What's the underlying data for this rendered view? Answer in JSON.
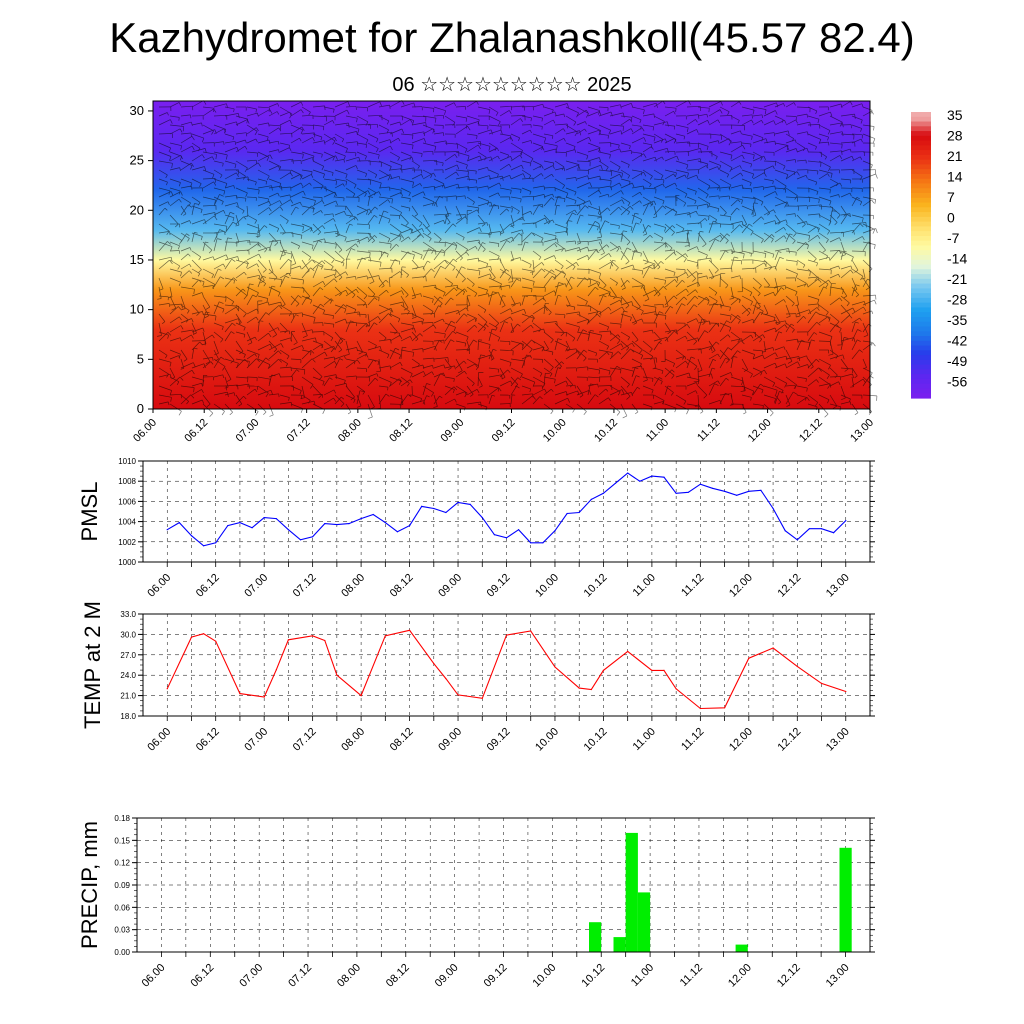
{
  "title": "Kazhydromet for Zhalanashkoll(45.57 82.4)",
  "subtitle": "06 ☆☆☆☆☆☆☆☆☆ 2025",
  "chart_data": [
    {
      "type": "heatmap",
      "name": "temperature-wind-cross-section",
      "x_ticks": [
        "06.00",
        "06.12",
        "07.00",
        "07.12",
        "08.00",
        "08.12",
        "09.00",
        "09.12",
        "10.00",
        "10.12",
        "11.00",
        "11.12",
        "12.00",
        "12.12",
        "13.00"
      ],
      "y_ticks": [
        "0",
        "5",
        "10",
        "15",
        "20",
        "25",
        "30"
      ],
      "ylim": [
        0,
        31
      ],
      "colorbar_labels": [
        "35",
        "28",
        "21",
        "14",
        "7",
        "0",
        "-7",
        "-14",
        "-21",
        "-28",
        "-35",
        "-42",
        "-49",
        "-56"
      ],
      "colorbar_range": [
        -60,
        38
      ],
      "level_temperature_profile": [
        {
          "level": 0,
          "value": 30
        },
        {
          "level": 8,
          "value": 22
        },
        {
          "level": 12,
          "value": 10
        },
        {
          "level": 15,
          "value": -8
        },
        {
          "level": 18,
          "value": -25
        },
        {
          "level": 22,
          "value": -40
        },
        {
          "level": 26,
          "value": -52
        },
        {
          "level": 31,
          "value": -60
        }
      ],
      "wind_barbs": true,
      "colors": {
        "cold": "#7a1fef",
        "mid_cold": "#1e9fef",
        "neutral": "#ffffb0",
        "warm": "#f5a000",
        "hot": "#e01010"
      }
    },
    {
      "type": "line",
      "name": "pmsl",
      "ylabel": "PMSL",
      "y_ticks": [
        "1000",
        "1002",
        "1004",
        "1006",
        "1008",
        "1010"
      ],
      "ylim": [
        1000,
        1010
      ],
      "x_ticks": [
        "06.00",
        "06.12",
        "07.00",
        "07.12",
        "08.00",
        "08.12",
        "09.00",
        "09.12",
        "10.00",
        "10.12",
        "11.00",
        "11.12",
        "12.00",
        "12.12",
        "13.00"
      ],
      "xlim": [
        -1,
        29
      ],
      "grid": true,
      "color": "#0000ff",
      "x": [
        0,
        0.5,
        1,
        1.5,
        2,
        2.5,
        3,
        3.5,
        4,
        4.5,
        5,
        5.5,
        6,
        6.5,
        7,
        7.5,
        8,
        8.5,
        9,
        9.5,
        10,
        10.5,
        11,
        11.5,
        12,
        12.5,
        13,
        13.5,
        14,
        14.5,
        15,
        15.5,
        16,
        16.5,
        17,
        17.5,
        18,
        18.5,
        19,
        19.5,
        20,
        20.5,
        21,
        21.5,
        22,
        22.5,
        23,
        23.5,
        24,
        24.5,
        25,
        25.5,
        26,
        26.5,
        27,
        27.5,
        28
      ],
      "values": [
        1003.2,
        1003.9,
        1002.6,
        1001.6,
        1001.9,
        1003.6,
        1003.9,
        1003.4,
        1004.4,
        1004.3,
        1003.2,
        1002.2,
        1002.5,
        1003.8,
        1003.7,
        1003.8,
        1004.3,
        1004.7,
        1003.9,
        1003.0,
        1003.6,
        1005.5,
        1005.3,
        1004.9,
        1005.9,
        1005.7,
        1004.4,
        1002.7,
        1002.4,
        1003.2,
        1001.9,
        1001.9,
        1003.1,
        1004.8,
        1004.9,
        1006.2,
        1006.8,
        1007.8,
        1008.8,
        1008.0,
        1008.5,
        1008.4,
        1006.8,
        1006.9,
        1007.7,
        1007.3,
        1007.0,
        1006.6,
        1007.0,
        1007.1,
        1005.3,
        1003.1,
        1002.2,
        1003.3,
        1003.3,
        1002.9,
        1004.1
      ]
    },
    {
      "type": "line",
      "name": "temp-2m",
      "ylabel": "TEMP at 2 M",
      "y_ticks": [
        "18.0",
        "21.0",
        "24.0",
        "27.0",
        "30.0",
        "33.0"
      ],
      "ylim": [
        18,
        33
      ],
      "x_ticks": [
        "06.00",
        "06.12",
        "07.00",
        "07.12",
        "08.00",
        "08.12",
        "09.00",
        "09.12",
        "10.00",
        "10.12",
        "11.00",
        "11.12",
        "12.00",
        "12.12",
        "13.00"
      ],
      "xlim": [
        -1,
        29
      ],
      "grid": true,
      "color": "#ff0000",
      "x": [
        0,
        1,
        1.5,
        2,
        3,
        4,
        4.5,
        5,
        6,
        6.5,
        7,
        8,
        9,
        10,
        11,
        11.5,
        12,
        13,
        14,
        15,
        16,
        17,
        17.5,
        18,
        19,
        20,
        20.5,
        21,
        22,
        23,
        24,
        25,
        26,
        27,
        28
      ],
      "values": [
        22.0,
        29.6,
        30.1,
        29.0,
        21.3,
        20.8,
        24.8,
        29.2,
        29.8,
        29.1,
        24.0,
        21.0,
        29.8,
        30.6,
        25.7,
        23.5,
        21.1,
        20.6,
        29.9,
        30.5,
        25.2,
        22.1,
        21.9,
        24.7,
        27.5,
        24.7,
        24.7,
        22.0,
        19.1,
        19.2,
        26.5,
        28.0,
        25.3,
        22.8,
        21.6
      ]
    },
    {
      "type": "bar",
      "name": "precip",
      "ylabel": "PRECIP, mm",
      "y_ticks": [
        "0.00",
        "0.03",
        "0.06",
        "0.09",
        "0.12",
        "0.15",
        "0.18"
      ],
      "ylim": [
        0,
        0.18
      ],
      "x_ticks": [
        "06.00",
        "06.12",
        "07.00",
        "07.12",
        "08.00",
        "08.12",
        "09.00",
        "09.12",
        "10.00",
        "10.12",
        "11.00",
        "11.12",
        "12.00",
        "12.12",
        "13.00"
      ],
      "xlim": [
        -1,
        29
      ],
      "grid": true,
      "color": "#00ee00",
      "x": [
        17.75,
        18.75,
        19.25,
        19.75,
        23.75,
        28
      ],
      "values": [
        0.04,
        0.02,
        0.16,
        0.08,
        0.01,
        0.14
      ]
    }
  ]
}
